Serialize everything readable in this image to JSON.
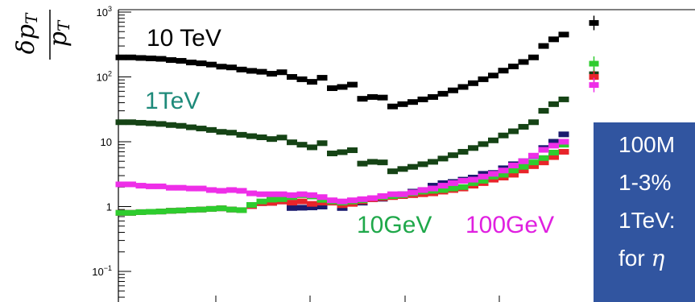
{
  "chart_data": {
    "type": "scatter",
    "y_scale": "log",
    "ylim": [
      0.03,
      1000
    ],
    "ylabel": "δpT / pT (%",
    "y_ticks": [
      {
        "value": 1000,
        "label": "10",
        "exp": "3"
      },
      {
        "value": 100,
        "label": "10",
        "exp": "2"
      },
      {
        "value": 10,
        "label": "10",
        "exp": ""
      },
      {
        "value": 1,
        "label": "1",
        "exp": ""
      },
      {
        "value": 0.1,
        "label": "10",
        "exp": "−1"
      }
    ],
    "x_positions": [
      1,
      2,
      3,
      4,
      5,
      6,
      7,
      8,
      9,
      10,
      11,
      12,
      13,
      14,
      15,
      16,
      17,
      18,
      19,
      20,
      21,
      22,
      23,
      24,
      25,
      26,
      27,
      28,
      29,
      30,
      31,
      32,
      33,
      34,
      35,
      36,
      37,
      38,
      39,
      40,
      41,
      42,
      43,
      44,
      45
    ],
    "series": [
      {
        "color": "#000000",
        "y": [
          200,
          200,
          196,
          193,
          190,
          182,
          177,
          167,
          162,
          155,
          144,
          140,
          130,
          124,
          120,
          112,
          118,
          100,
          92,
          84,
          97,
          67,
          70,
          76,
          46,
          49,
          48,
          35,
          38,
          41,
          45,
          49,
          55,
          62,
          70,
          80,
          92,
          105,
          125,
          145,
          170,
          200,
          300,
          380,
          450
        ],
        "extra": {
          "x": 48,
          "y": 680
        }
      },
      {
        "color": "#154315",
        "y": [
          20,
          20,
          19.6,
          19.2,
          18.8,
          18.1,
          17.6,
          16.7,
          16,
          15.2,
          14.2,
          13.8,
          12.8,
          12.2,
          11.7,
          11,
          11.6,
          9.8,
          9,
          8.2,
          9.5,
          6.6,
          6.9,
          7.4,
          4.6,
          4.9,
          4.8,
          3.5,
          3.8,
          4.1,
          4.5,
          4.9,
          5.5,
          6.2,
          7,
          8,
          9.2,
          10.5,
          12.5,
          14.5,
          17,
          20,
          30,
          38,
          45
        ],
        "extra": {
          "x": 48,
          "y": 110
        }
      },
      {
        "color": "#1a1a6e",
        "y": [
          0.8,
          0.8,
          0.82,
          0.83,
          0.84,
          0.86,
          0.87,
          0.89,
          0.9,
          0.92,
          0.94,
          0.9,
          0.88,
          1.02,
          1.13,
          1.14,
          1.2,
          0.95,
          0.96,
          0.97,
          1.0,
          1.2,
          0.95,
          1.12,
          1.15,
          1.3,
          1.32,
          1.45,
          1.55,
          1.7,
          1.8,
          2.1,
          2.3,
          2.4,
          2.6,
          2.8,
          3.2,
          3.3,
          3.9,
          4.5,
          5,
          6,
          8,
          10,
          13
        ],
        "extra": null
      },
      {
        "color": "#e8242a",
        "y": [
          0.8,
          0.8,
          0.82,
          0.83,
          0.84,
          0.86,
          0.87,
          0.89,
          0.9,
          0.92,
          0.94,
          0.9,
          0.88,
          1.02,
          1.13,
          1.14,
          1.2,
          1.15,
          1.2,
          1.1,
          1.15,
          1.15,
          1.05,
          1.1,
          1.2,
          1.3,
          1.35,
          1.4,
          1.45,
          1.5,
          1.55,
          1.6,
          1.7,
          1.8,
          1.9,
          2.1,
          2.3,
          2.6,
          2.8,
          3.1,
          3.6,
          4.2,
          4.8,
          5.8,
          7
        ],
        "extra": {
          "x": 48,
          "y": 100
        }
      },
      {
        "color": "#2ecc2e",
        "y": [
          0.8,
          0.8,
          0.82,
          0.83,
          0.84,
          0.86,
          0.87,
          0.89,
          0.9,
          0.92,
          0.94,
          0.9,
          0.88,
          1.06,
          1.2,
          1.28,
          1.3,
          1.4,
          1.5,
          1.43,
          1.27,
          1.2,
          1.15,
          1.2,
          1.25,
          1.35,
          1.4,
          1.45,
          1.5,
          1.6,
          1.7,
          1.75,
          1.8,
          1.9,
          2.0,
          2.3,
          2.5,
          2.9,
          3.1,
          3.6,
          4.1,
          4.8,
          5.6,
          6.8,
          9
        ],
        "extra": {
          "x": 48,
          "y": 160
        }
      },
      {
        "color": "#ee2ee8",
        "y": [
          2.2,
          2.2,
          2.1,
          2.05,
          2.05,
          1.95,
          1.95,
          1.9,
          1.9,
          1.8,
          1.75,
          1.8,
          1.75,
          1.6,
          1.55,
          1.55,
          1.55,
          1.5,
          1.55,
          1.5,
          1.4,
          1.25,
          1.2,
          1.25,
          1.3,
          1.35,
          1.45,
          1.55,
          1.55,
          1.65,
          1.8,
          1.9,
          2.1,
          2.3,
          2.5,
          2.6,
          2.9,
          3.2,
          3.6,
          4.3,
          5,
          6.1,
          7.5,
          8.7,
          10
        ],
        "extra": {
          "x": 48,
          "y": 75
        }
      }
    ],
    "annotations": [
      {
        "text": "10 TeV",
        "color": "#000000"
      },
      {
        "text": "1TeV",
        "color": "#1e8a7a"
      },
      {
        "text": "10GeV",
        "color": "#1fa84a"
      },
      {
        "text": "100GeV",
        "color": "#e020e0"
      }
    ]
  },
  "info_box": {
    "lines": [
      "100M",
      "1-3%",
      "1TeV:",
      "for "
    ],
    "eta_symbol": "η"
  }
}
